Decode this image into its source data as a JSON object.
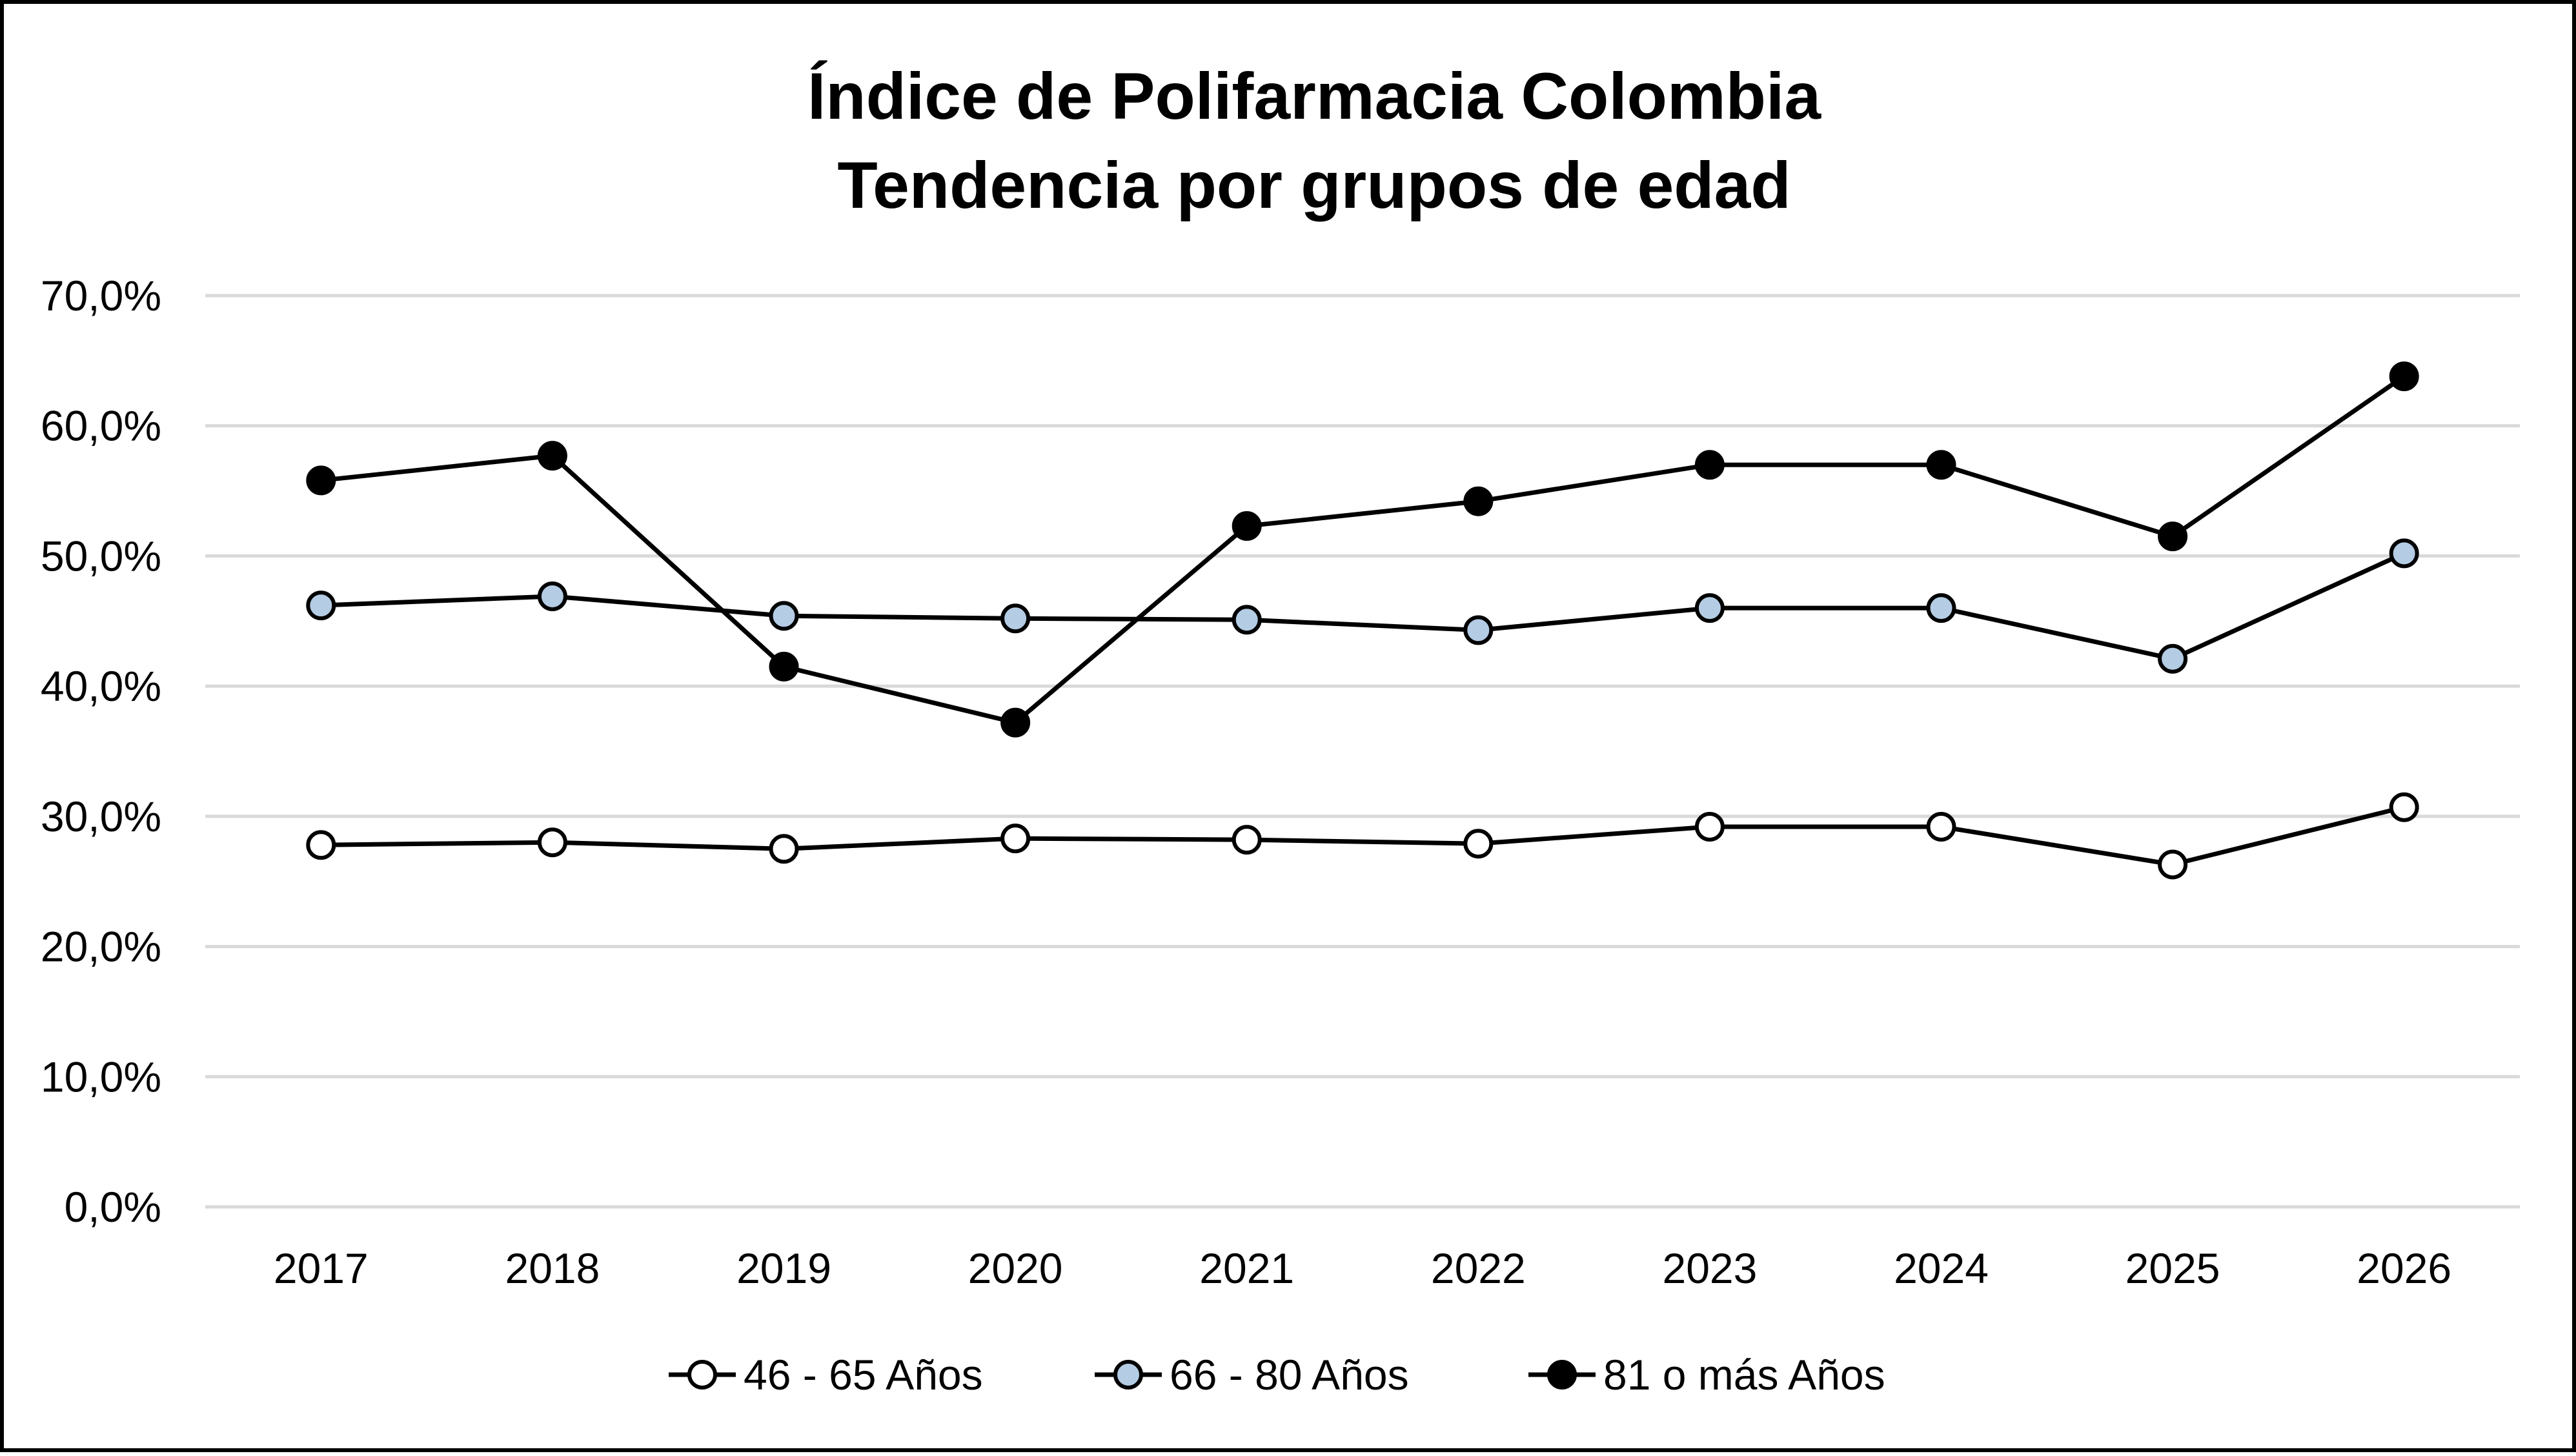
{
  "chart_data": {
    "type": "line",
    "title": [
      "Índice de Polifarmacia Colombia",
      "Tendencia por grupos de edad"
    ],
    "x": [
      "2017",
      "2018",
      "2019",
      "2020",
      "2021",
      "2022",
      "2023",
      "2024",
      "2025",
      "2026"
    ],
    "ylim": [
      0,
      70
    ],
    "yticks": [
      0,
      10,
      20,
      30,
      40,
      50,
      60,
      70
    ],
    "ytick_labels": [
      "0,0%",
      "10,0%",
      "20,0%",
      "30,0%",
      "40,0%",
      "50,0%",
      "60,0%",
      "70,0%"
    ],
    "grid": true,
    "legend_position": "bottom",
    "series": [
      {
        "name": "46 - 65 Años",
        "marker_fill": "#ffffff",
        "values": [
          27.8,
          28.0,
          27.5,
          28.3,
          28.2,
          27.9,
          29.2,
          29.2,
          26.3,
          30.7
        ]
      },
      {
        "name": "66 - 80 Años",
        "marker_fill": "#b4cce4",
        "values": [
          46.2,
          46.9,
          45.4,
          45.2,
          45.1,
          44.3,
          46.0,
          46.0,
          42.1,
          50.2
        ]
      },
      {
        "name": "81 o más Años",
        "marker_fill": "#000000",
        "values": [
          55.8,
          57.7,
          41.5,
          37.2,
          52.3,
          54.2,
          57.0,
          57.0,
          51.5,
          63.8
        ]
      }
    ],
    "line_color": "#000000",
    "grid_color": "#d9d9d9"
  }
}
